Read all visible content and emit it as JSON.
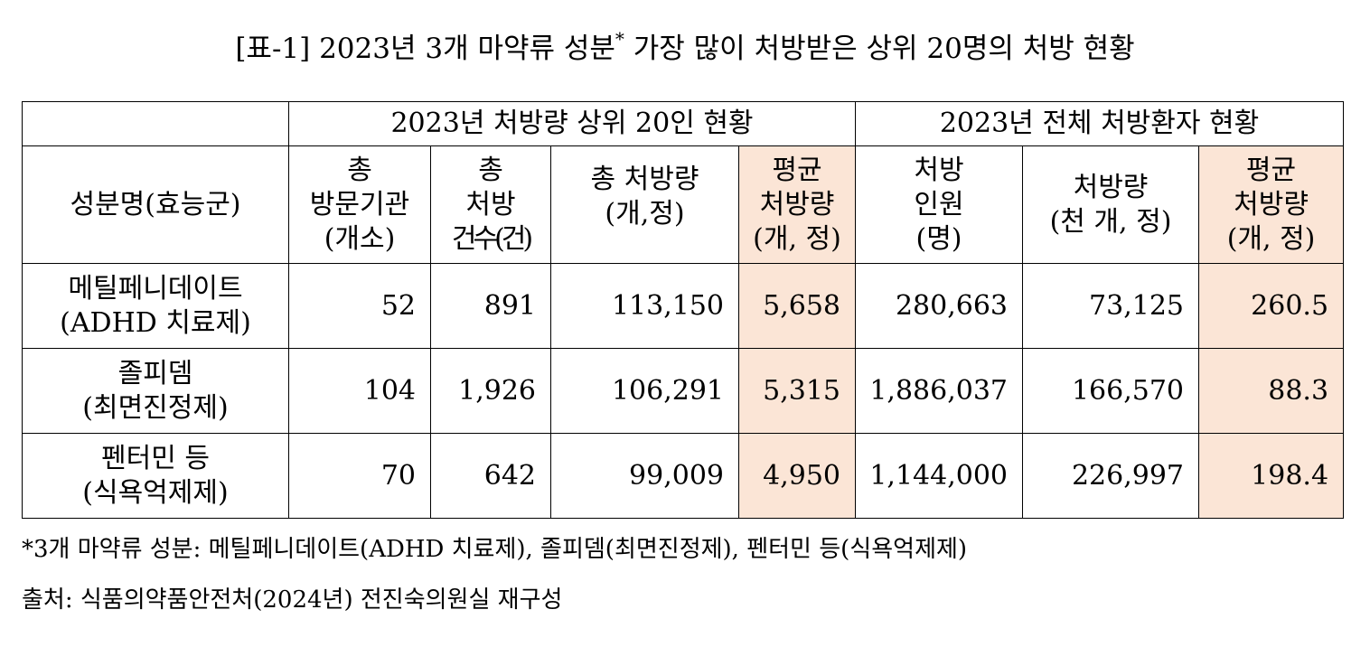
{
  "title": {
    "text": "[표-1] 2023년 3개 마약류 성분",
    "marker": "*",
    "text_after": " 가장 많이 처방받은 상위 20명의 처방 현황"
  },
  "table": {
    "group_headers": {
      "top20": "2023년 처방량 상위 20인 현황",
      "all": "2023년 전체 처방환자 현황"
    },
    "column_headers": {
      "ingredient": "성분명(효능군)",
      "institutions": [
        "총",
        "방문기관",
        "(개소)"
      ],
      "prescriptions": [
        "총",
        "처방",
        "건수(건)"
      ],
      "total_amount": [
        "총 처방량",
        "(개,정)"
      ],
      "avg_amount_top20": [
        "평균",
        "처방량",
        "(개, 정)"
      ],
      "patients": [
        "처방",
        "인원",
        "(명)"
      ],
      "amount_all": [
        "처방량",
        "(천 개, 정)"
      ],
      "avg_amount_all": [
        "평균",
        "처방량",
        "(개, 정)"
      ]
    },
    "rows": [
      {
        "name": "메틸페니데이트",
        "group": "(ADHD 치료제)",
        "institutions": "52",
        "prescriptions": "891",
        "total_amount": "113,150",
        "avg_top20": "5,658",
        "patients": "280,663",
        "amount_all": "73,125",
        "avg_all": "260.5"
      },
      {
        "name": "졸피뎀",
        "group": "(최면진정제)",
        "institutions": "104",
        "prescriptions": "1,926",
        "total_amount": "106,291",
        "avg_top20": "5,315",
        "patients": "1,886,037",
        "amount_all": "166,570",
        "avg_all": "88.3"
      },
      {
        "name": "펜터민 등",
        "group": "(식욕억제제)",
        "institutions": "70",
        "prescriptions": "642",
        "total_amount": "99,009",
        "avg_top20": "4,950",
        "patients": "1,144,000",
        "amount_all": "226,997",
        "avg_all": "198.4"
      }
    ],
    "highlight_color": "#fbe5d6"
  },
  "footnote": "*3개 마약류 성분:  메틸페니데이트(ADHD 치료제), 졸피뎀(최면진정제), 펜터민 등(식욕억제제)",
  "source": "출처: 식품의약품안전처(2024년) 전진숙의원실 재구성"
}
